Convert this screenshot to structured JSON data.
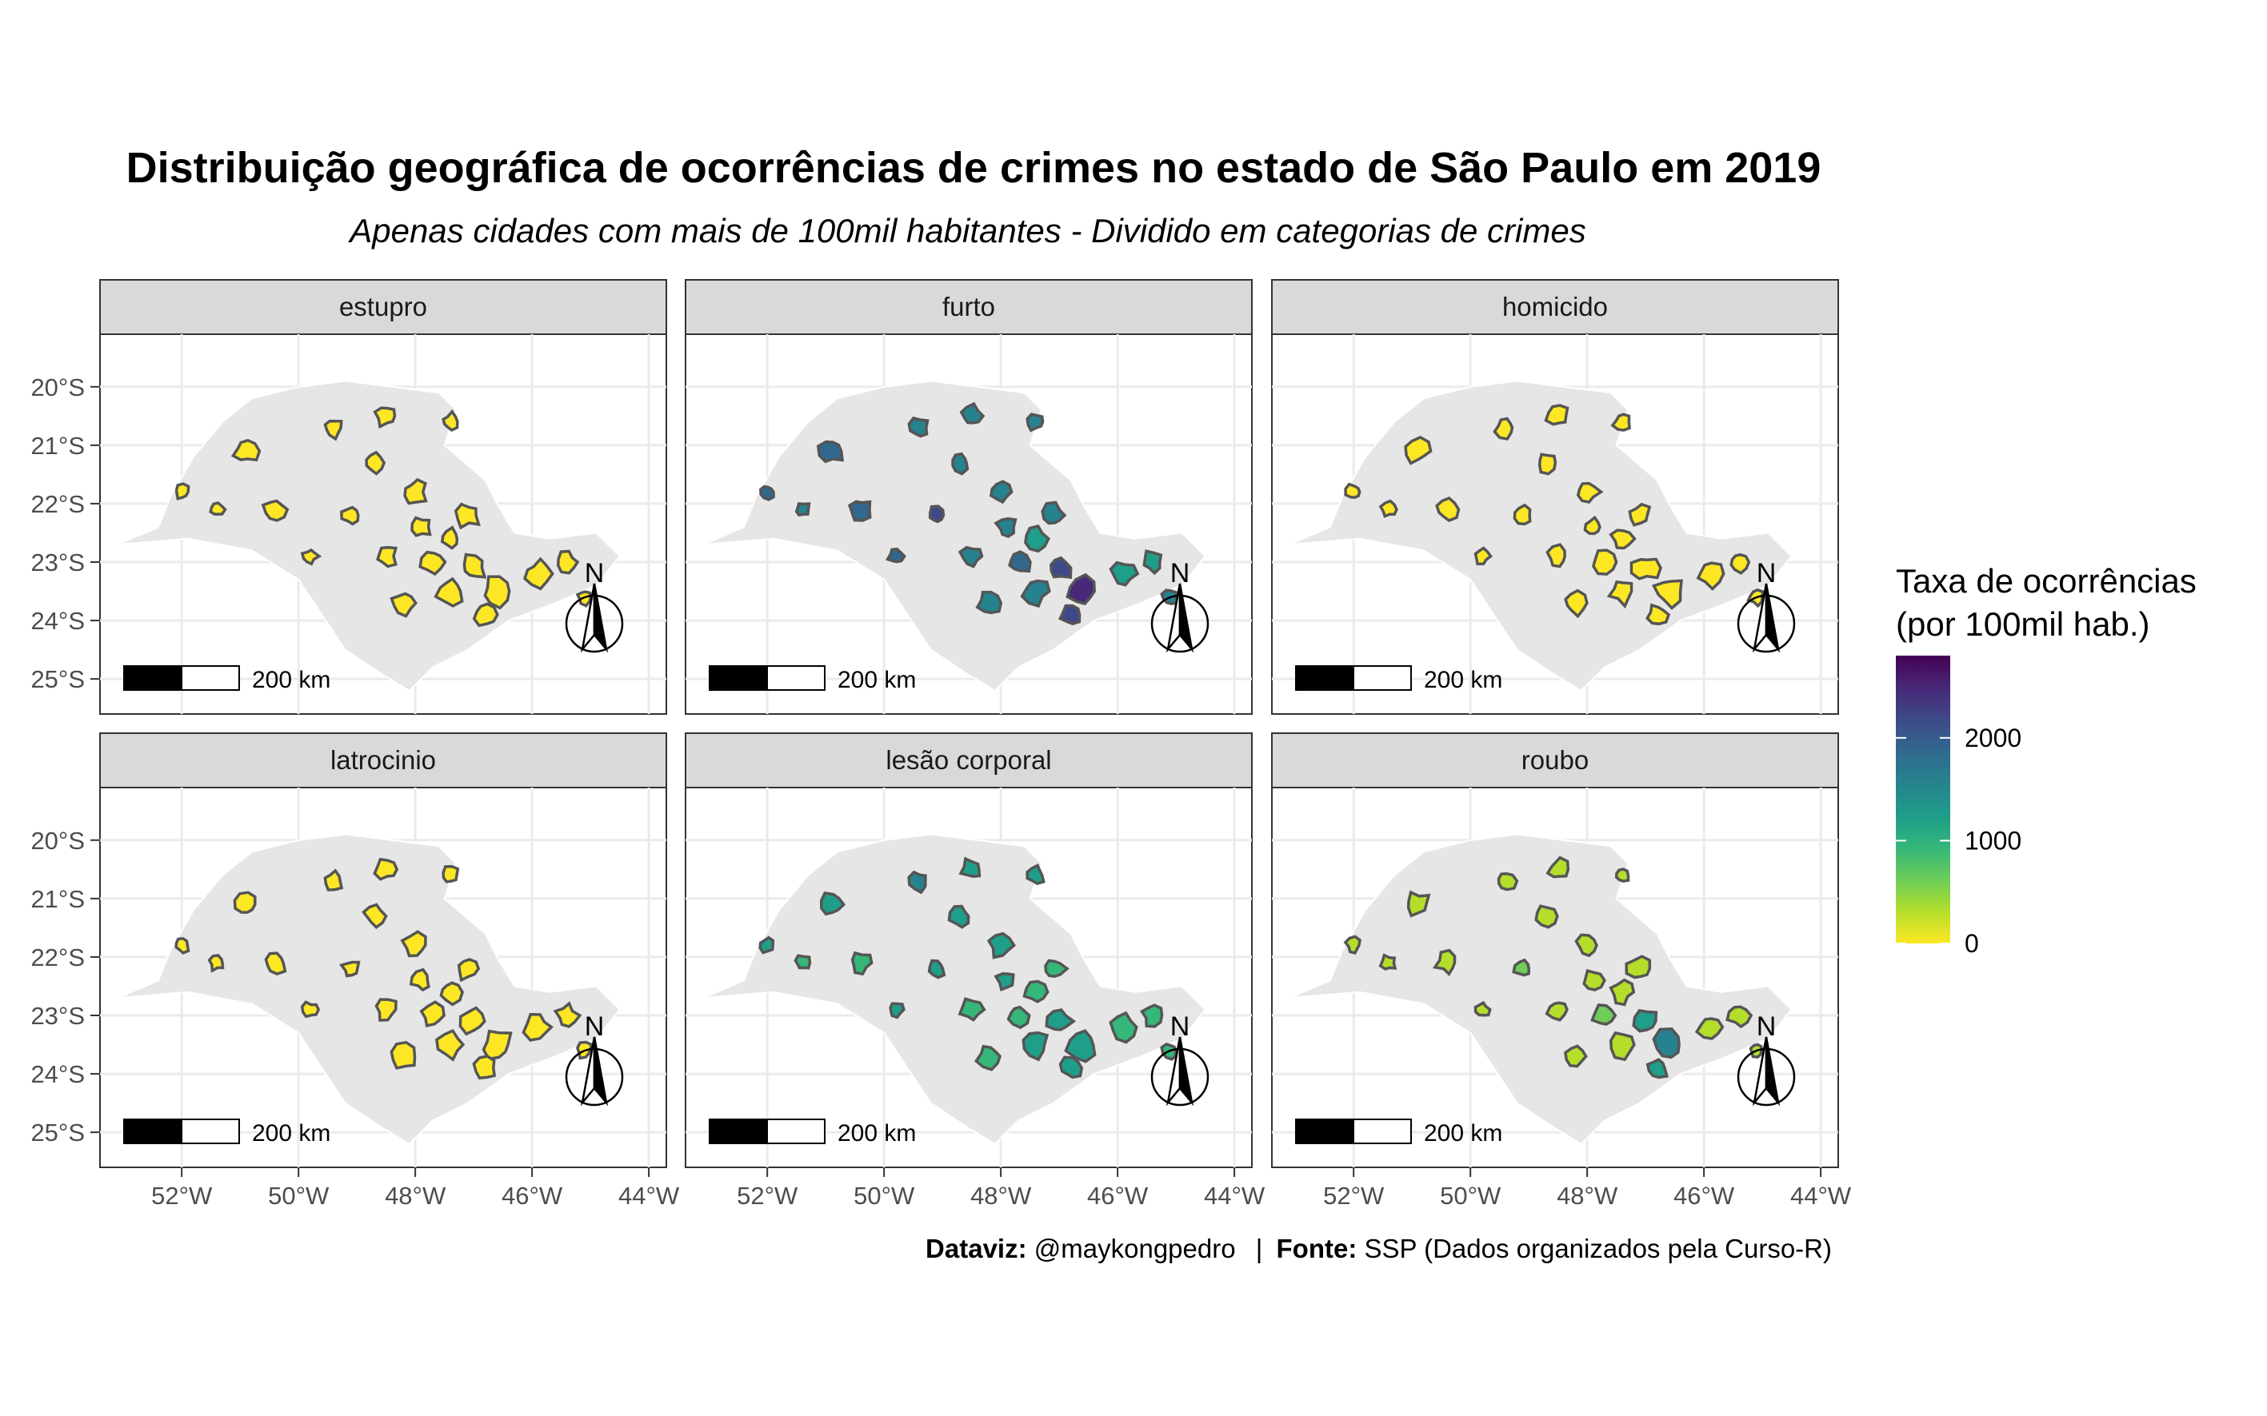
{
  "title": "Distribuição geográfica de ocorrências de crimes no estado de São Paulo em 2019",
  "subtitle": "Apenas cidades com mais de 100mil habitantes - Dividido em categorias de crimes",
  "caption": {
    "dataviz_label": "Dataviz:",
    "dataviz_value": "@maykongpedro",
    "separator": "|",
    "fonte_label": "Fonte:",
    "fonte_value": "SSP (Dados organizados pela Curso-R)"
  },
  "legend": {
    "title_line1": "Taxa de ocorrências",
    "title_line2": "(por 100mil hab.)",
    "ticks": [
      "2000",
      "1000",
      "0"
    ],
    "tick_values": [
      2000,
      1000,
      0
    ],
    "min": 0,
    "max": 2800,
    "colors": [
      "#fde725",
      "#b5de2b",
      "#6ece58",
      "#35b779",
      "#1f9e89",
      "#26828e",
      "#31688e",
      "#3e4989",
      "#482878",
      "#440154"
    ]
  },
  "axes": {
    "lat_labels": [
      "20°S",
      "21°S",
      "22°S",
      "23°S",
      "24°S",
      "25°S"
    ],
    "lat_values": [
      -20,
      -21,
      -22,
      -23,
      -24,
      -25
    ],
    "lon_labels": [
      "52°W",
      "50°W",
      "48°W",
      "46°W",
      "44°W"
    ],
    "lon_values": [
      -52,
      -50,
      -48,
      -46,
      -44
    ],
    "lon_range": [
      -53.4,
      -43.7
    ],
    "lat_range": [
      -25.6,
      -19.1
    ]
  },
  "map_elements": {
    "scale_label": "200 km",
    "north_label": "N"
  },
  "panels": [
    {
      "name": "estupro",
      "label": "estupro",
      "rates": [
        40,
        60,
        35,
        30,
        45,
        55,
        50,
        38,
        42,
        36,
        48,
        52,
        44,
        40,
        39,
        41,
        35,
        37,
        46,
        43,
        50,
        38,
        45,
        47
      ]
    },
    {
      "name": "furto",
      "label": "furto",
      "rates": [
        1800,
        1700,
        1500,
        1400,
        1600,
        1750,
        1900,
        2100,
        1650,
        1550,
        1450,
        1350,
        1700,
        1850,
        2300,
        2600,
        2200,
        1250,
        1300,
        1500,
        1600,
        1400,
        1700,
        1800
      ]
    },
    {
      "name": "homicido",
      "label": "homicido",
      "rates": [
        10,
        12,
        8,
        9,
        14,
        11,
        10,
        13,
        9,
        12,
        10,
        11,
        8,
        9,
        10,
        12,
        11,
        10,
        9,
        13,
        12,
        10,
        11,
        9
      ]
    },
    {
      "name": "latrocinio",
      "label": "latrocinio",
      "rates": [
        2,
        1,
        0,
        1,
        2,
        1,
        0,
        2,
        1,
        1,
        0,
        2,
        1,
        0,
        1,
        2,
        1,
        0,
        1,
        2,
        1,
        0,
        1,
        1
      ]
    },
    {
      "name": "lesao-corporal",
      "label": "lesão corporal",
      "rates": [
        1100,
        1400,
        1300,
        1200,
        1250,
        1150,
        1050,
        1200,
        1350,
        1100,
        1000,
        900,
        950,
        1050,
        1150,
        1250,
        1100,
        1000,
        950,
        1050,
        1150,
        1000,
        900,
        1100
      ]
    },
    {
      "name": "roubo",
      "label": "roubo",
      "rates": [
        250,
        300,
        200,
        180,
        350,
        400,
        450,
        500,
        380,
        320,
        280,
        260,
        300,
        700,
        1300,
        1500,
        1100,
        240,
        220,
        260,
        280,
        300,
        320,
        340
      ]
    }
  ]
}
